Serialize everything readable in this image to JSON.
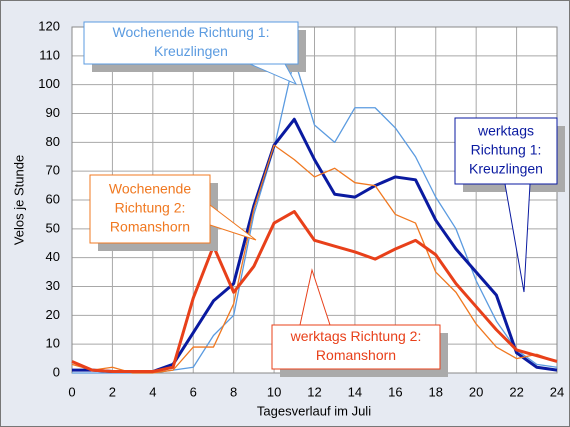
{
  "chart_data": {
    "type": "line",
    "x_label": "Tagesverlauf im Juli",
    "y_label": "Velos je Stunde",
    "x": [
      0,
      1,
      2,
      3,
      4,
      5,
      6,
      7,
      8,
      9,
      10,
      11,
      12,
      13,
      14,
      15,
      16,
      17,
      18,
      19,
      20,
      21,
      22,
      23,
      24
    ],
    "xlim": [
      0,
      24
    ],
    "xticks": [
      0,
      2,
      4,
      6,
      8,
      10,
      12,
      14,
      16,
      18,
      20,
      22,
      24
    ],
    "ylim": [
      0,
      120
    ],
    "yticks": [
      0,
      10,
      20,
      30,
      40,
      50,
      60,
      70,
      80,
      90,
      100,
      110,
      120
    ],
    "grid": true,
    "series": [
      {
        "label": [
          "Wochenende Richtung 1:",
          "Kreuzlingen"
        ],
        "color": "#5b9be0",
        "width": 1.3,
        "values": [
          0,
          0,
          0,
          0,
          0,
          1,
          2,
          13,
          20,
          55,
          78,
          109,
          86,
          80,
          92,
          92,
          85,
          75,
          61,
          50,
          32,
          18,
          8,
          3,
          2
        ]
      },
      {
        "label": [
          "werktags",
          "Richtung 1:",
          "Kreuzlingen"
        ],
        "color": "#0a1aa0",
        "width": 3,
        "values": [
          1,
          1,
          0.5,
          0.5,
          0.5,
          3,
          14,
          25,
          31,
          58,
          79,
          88,
          74,
          62,
          61,
          65,
          68,
          67,
          53,
          43,
          35,
          27,
          7,
          2,
          1
        ]
      },
      {
        "label": [
          "Wochenende",
          "Richtung 2:",
          "Romanshorn"
        ],
        "color": "#f07820",
        "width": 1.3,
        "values": [
          3,
          1,
          2,
          0,
          0,
          1,
          9,
          9,
          24,
          57,
          79,
          74,
          68,
          71,
          66,
          65,
          55,
          52,
          35,
          28,
          17,
          9,
          5,
          6.5,
          4
        ]
      },
      {
        "label": [
          "werktags Richtung 2:",
          "Romanshorn"
        ],
        "color": "#e8401a",
        "width": 3,
        "values": [
          4,
          1,
          0.5,
          0.5,
          0.5,
          2,
          26,
          44,
          28,
          37,
          52,
          56,
          46,
          44,
          42,
          39.5,
          43,
          46,
          41,
          31,
          23,
          15,
          8,
          6,
          4
        ]
      }
    ]
  }
}
